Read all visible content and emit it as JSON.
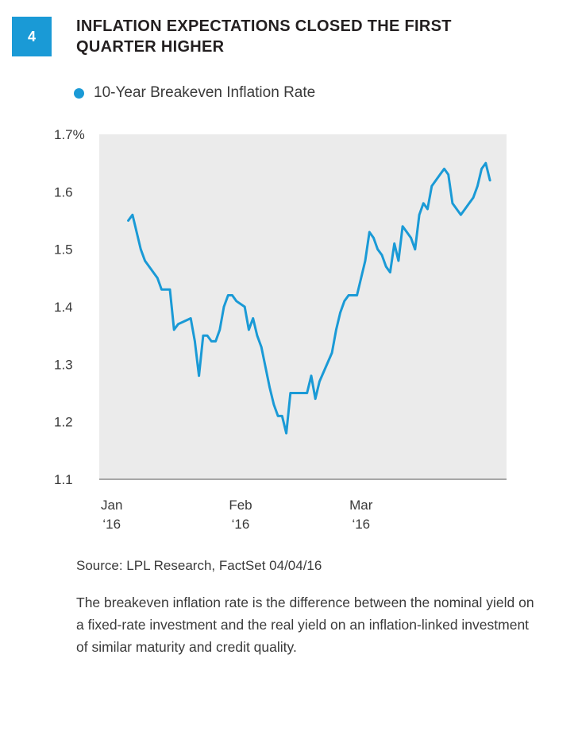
{
  "figure": {
    "number": "4",
    "title": "INFLATION EXPECTATIONS CLOSED THE FIRST QUARTER HIGHER"
  },
  "colors": {
    "accent": "#1a9ad6",
    "plot_bg": "#ebebeb",
    "axis": "#8c8c8c"
  },
  "chart_data": {
    "type": "line",
    "title": "Inflation Expectations Closed the First Quarter Higher",
    "legend": [
      "10-Year Breakeven Inflation Rate"
    ],
    "legend_position": "top-left",
    "xlabel": "",
    "ylabel": "",
    "ylim": [
      1.1,
      1.7
    ],
    "y_ticks": [
      {
        "value": 1.7,
        "label": "1.7%"
      },
      {
        "value": 1.6,
        "label": "1.6"
      },
      {
        "value": 1.5,
        "label": "1.5"
      },
      {
        "value": 1.4,
        "label": "1.4"
      },
      {
        "value": 1.3,
        "label": "1.3"
      },
      {
        "value": 1.2,
        "label": "1.2"
      },
      {
        "value": 1.1,
        "label": "1.1"
      }
    ],
    "x_ticks": [
      {
        "day": 0,
        "line1": "Jan",
        "line2": "‘16"
      },
      {
        "day": 31,
        "line1": "Feb",
        "line2": "‘16"
      },
      {
        "day": 60,
        "line1": "Mar",
        "line2": "‘16"
      }
    ],
    "x_range_days": [
      -3,
      95
    ],
    "series": [
      {
        "name": "10-Year Breakeven Inflation Rate",
        "x_days": [
          4,
          5,
          7,
          8,
          10,
          11,
          12,
          13,
          14,
          15,
          16,
          19,
          20,
          21,
          22,
          23,
          24,
          25,
          26,
          27,
          28,
          29,
          30,
          32,
          33,
          34,
          35,
          36,
          38,
          39,
          40,
          41,
          42,
          43,
          44,
          45,
          46,
          47,
          48,
          49,
          50,
          53,
          54,
          55,
          56,
          57,
          59,
          60,
          61,
          62,
          63,
          64,
          65,
          66,
          67,
          68,
          69,
          70,
          71,
          72,
          73,
          74,
          75,
          76,
          77,
          78,
          79,
          80,
          81,
          82,
          84,
          85,
          86,
          87,
          88,
          89,
          90,
          91
        ],
        "values": [
          1.55,
          1.56,
          1.5,
          1.48,
          1.46,
          1.45,
          1.43,
          1.43,
          1.43,
          1.36,
          1.37,
          1.38,
          1.34,
          1.28,
          1.35,
          1.35,
          1.34,
          1.34,
          1.36,
          1.4,
          1.42,
          1.42,
          1.41,
          1.4,
          1.36,
          1.38,
          1.35,
          1.33,
          1.26,
          1.23,
          1.21,
          1.21,
          1.18,
          1.25,
          1.25,
          1.25,
          1.25,
          1.25,
          1.28,
          1.24,
          1.27,
          1.32,
          1.36,
          1.39,
          1.41,
          1.42,
          1.42,
          1.45,
          1.48,
          1.53,
          1.52,
          1.5,
          1.49,
          1.47,
          1.46,
          1.51,
          1.48,
          1.54,
          1.53,
          1.52,
          1.5,
          1.56,
          1.58,
          1.57,
          1.61,
          1.62,
          1.63,
          1.64,
          1.63,
          1.58,
          1.56,
          1.57,
          1.58,
          1.59,
          1.61,
          1.64,
          1.65,
          1.62
        ]
      }
    ]
  },
  "source": "Source: LPL Research, FactSet   04/04/16",
  "note": "The breakeven inflation rate is the difference between the nominal yield on a fixed-rate investment and the real yield on an inflation-linked investment of similar maturity and credit quality."
}
